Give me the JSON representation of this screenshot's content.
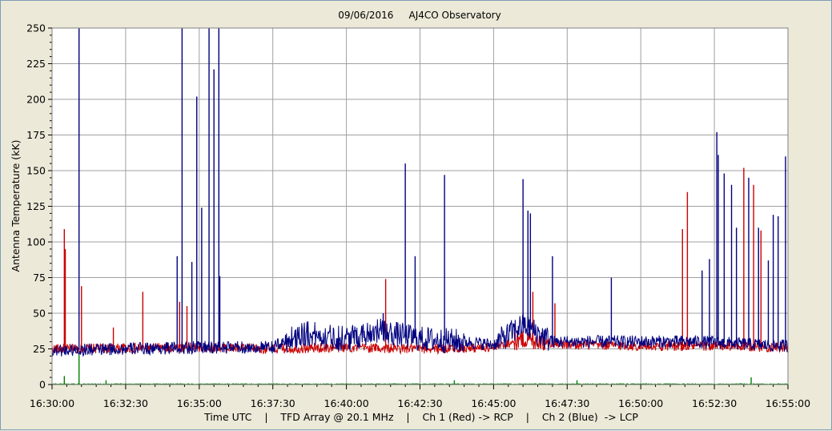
{
  "chart_data": {
    "type": "line",
    "title": "09/06/2016     AJ4CO Observatory",
    "xlabel": "Time UTC    |    TFD Array @ 20.1 MHz    |    Ch 1 (Red) -> RCP    |    Ch 2 (Blue)  -> LCP",
    "ylabel": "Antenna Temperature (kK)",
    "ylim": [
      0,
      250
    ],
    "yticks": [
      0,
      25,
      50,
      75,
      100,
      125,
      150,
      175,
      200,
      225,
      250
    ],
    "xlim": [
      "16:30:00",
      "16:55:00"
    ],
    "xticks": [
      "16:30:00",
      "16:32:30",
      "16:35:00",
      "16:37:30",
      "16:40:00",
      "16:42:30",
      "16:45:00",
      "16:47:30",
      "16:50:00",
      "16:52:30",
      "16:55:00"
    ],
    "grid": true,
    "series": [
      {
        "name": "Ch 1 (Red) -> RCP",
        "color": "#cc0000",
        "baseline": [
          {
            "t": "16:30:00",
            "v": 25
          },
          {
            "t": "16:35:00",
            "v": 26
          },
          {
            "t": "16:37:30",
            "v": 25
          },
          {
            "t": "16:40:00",
            "v": 26
          },
          {
            "t": "16:42:30",
            "v": 25
          },
          {
            "t": "16:45:00",
            "v": 26
          },
          {
            "t": "16:46:00",
            "v": 32
          },
          {
            "t": "16:47:30",
            "v": 28
          },
          {
            "t": "16:50:00",
            "v": 27
          },
          {
            "t": "16:52:30",
            "v": 27
          },
          {
            "t": "16:55:00",
            "v": 26
          }
        ],
        "spikes": [
          {
            "t": "16:30:25",
            "v": 109
          },
          {
            "t": "16:30:27",
            "v": 95
          },
          {
            "t": "16:31:00",
            "v": 69
          },
          {
            "t": "16:32:05",
            "v": 40
          },
          {
            "t": "16:33:05",
            "v": 65
          },
          {
            "t": "16:34:20",
            "v": 58
          },
          {
            "t": "16:34:35",
            "v": 55
          },
          {
            "t": "16:41:20",
            "v": 74
          },
          {
            "t": "16:46:20",
            "v": 65
          },
          {
            "t": "16:47:05",
            "v": 57
          },
          {
            "t": "16:51:25",
            "v": 109
          },
          {
            "t": "16:51:35",
            "v": 135
          },
          {
            "t": "16:53:30",
            "v": 152
          },
          {
            "t": "16:53:50",
            "v": 140
          },
          {
            "t": "16:54:05",
            "v": 108
          }
        ]
      },
      {
        "name": "Ch 2 (Blue)  -> LCP",
        "color": "#000080",
        "baseline": [
          {
            "t": "16:30:00",
            "v": 24
          },
          {
            "t": "16:35:00",
            "v": 26
          },
          {
            "t": "16:37:30",
            "v": 26
          },
          {
            "t": "16:38:30",
            "v": 36
          },
          {
            "t": "16:40:00",
            "v": 32
          },
          {
            "t": "16:41:00",
            "v": 38
          },
          {
            "t": "16:42:30",
            "v": 32
          },
          {
            "t": "16:44:00",
            "v": 30
          },
          {
            "t": "16:45:00",
            "v": 28
          },
          {
            "t": "16:46:00",
            "v": 42
          },
          {
            "t": "16:47:00",
            "v": 30
          },
          {
            "t": "16:50:00",
            "v": 30
          },
          {
            "t": "16:52:00",
            "v": 30
          },
          {
            "t": "16:55:00",
            "v": 27
          }
        ],
        "spikes": [
          {
            "t": "16:30:55",
            "v": 250
          },
          {
            "t": "16:34:15",
            "v": 90
          },
          {
            "t": "16:34:25",
            "v": 250
          },
          {
            "t": "16:34:45",
            "v": 86
          },
          {
            "t": "16:34:55",
            "v": 202
          },
          {
            "t": "16:35:05",
            "v": 124
          },
          {
            "t": "16:35:20",
            "v": 250
          },
          {
            "t": "16:35:30",
            "v": 221
          },
          {
            "t": "16:35:40",
            "v": 250
          },
          {
            "t": "16:35:42",
            "v": 76
          },
          {
            "t": "16:41:15",
            "v": 50
          },
          {
            "t": "16:42:00",
            "v": 155
          },
          {
            "t": "16:42:20",
            "v": 90
          },
          {
            "t": "16:43:20",
            "v": 147
          },
          {
            "t": "16:46:00",
            "v": 144
          },
          {
            "t": "16:46:10",
            "v": 122
          },
          {
            "t": "16:46:15",
            "v": 120
          },
          {
            "t": "16:47:00",
            "v": 90
          },
          {
            "t": "16:49:00",
            "v": 75
          },
          {
            "t": "16:52:05",
            "v": 80
          },
          {
            "t": "16:52:20",
            "v": 88
          },
          {
            "t": "16:52:35",
            "v": 177
          },
          {
            "t": "16:52:38",
            "v": 161
          },
          {
            "t": "16:52:50",
            "v": 148
          },
          {
            "t": "16:53:05",
            "v": 140
          },
          {
            "t": "16:53:15",
            "v": 110
          },
          {
            "t": "16:53:40",
            "v": 145
          },
          {
            "t": "16:54:00",
            "v": 110
          },
          {
            "t": "16:54:20",
            "v": 87
          },
          {
            "t": "16:54:30",
            "v": 119
          },
          {
            "t": "16:54:40",
            "v": 118
          },
          {
            "t": "16:54:55",
            "v": 160
          }
        ]
      },
      {
        "name": "",
        "color": "#008000",
        "baseline": [
          {
            "t": "16:30:00",
            "v": 0
          },
          {
            "t": "16:55:00",
            "v": 0
          }
        ],
        "spikes": [
          {
            "t": "16:30:25",
            "v": 6
          },
          {
            "t": "16:30:55",
            "v": 21
          },
          {
            "t": "16:31:50",
            "v": 3
          },
          {
            "t": "16:43:40",
            "v": 3
          },
          {
            "t": "16:47:50",
            "v": 3
          },
          {
            "t": "16:53:45",
            "v": 5
          }
        ]
      }
    ]
  }
}
